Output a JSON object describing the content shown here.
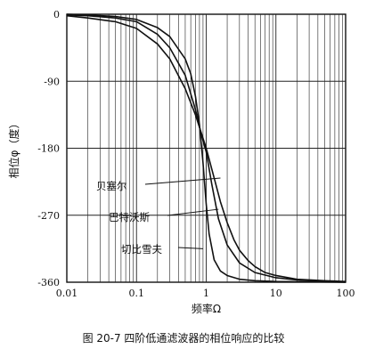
{
  "chart_data": {
    "type": "line",
    "x_scale": "log",
    "xlim": [
      0.01,
      100
    ],
    "ylim": [
      -360,
      0
    ],
    "xlabel": "频率Ω",
    "ylabel": "相位φ（度）",
    "x_ticks": [
      "0.01",
      "0.1",
      "1",
      "10",
      "100"
    ],
    "y_ticks": [
      "0",
      "-90",
      "-180",
      "-270",
      "-360"
    ],
    "grid": true,
    "series": [
      {
        "name": "贝塞尔",
        "x": [
          0.01,
          0.02,
          0.05,
          0.1,
          0.2,
          0.3,
          0.5,
          0.7,
          1,
          1.3,
          1.6,
          2,
          2.5,
          3,
          4,
          5,
          7,
          10,
          20,
          50,
          100
        ],
        "y": [
          -2,
          -5,
          -10,
          -19,
          -40,
          -60,
          -100,
          -135,
          -180,
          -220,
          -252,
          -280,
          -303,
          -317,
          -331,
          -339,
          -347,
          -351,
          -356,
          -358,
          -359
        ]
      },
      {
        "name": "巴特沃斯",
        "x": [
          0.01,
          0.02,
          0.05,
          0.1,
          0.2,
          0.3,
          0.5,
          0.7,
          0.85,
          1,
          1.2,
          1.5,
          2,
          3,
          5,
          10,
          20,
          50,
          100
        ],
        "y": [
          -1,
          -2,
          -5,
          -10,
          -27,
          -45,
          -82,
          -128,
          -162,
          -185,
          -228,
          -275,
          -310,
          -334,
          -347,
          -354,
          -357,
          -359,
          -360
        ]
      },
      {
        "name": "切比雪夫",
        "x": [
          0.01,
          0.02,
          0.05,
          0.1,
          0.2,
          0.3,
          0.5,
          0.6,
          0.7,
          0.8,
          0.9,
          1,
          1.1,
          1.3,
          1.6,
          2,
          3,
          5,
          10,
          100
        ],
        "y": [
          0,
          -1,
          -3,
          -7,
          -18,
          -30,
          -60,
          -80,
          -110,
          -148,
          -200,
          -255,
          -295,
          -330,
          -345,
          -351,
          -356,
          -358,
          -359,
          -360
        ]
      }
    ],
    "annotations": [
      {
        "text": "贝塞尔",
        "target_x": 1.6,
        "target_y": -220
      },
      {
        "text": "巴特沃斯",
        "target_x": 1.5,
        "target_y": -262
      },
      {
        "text": "切比雪夫",
        "target_x": 0.9,
        "target_y": -315
      }
    ],
    "caption": "图 20-7   四阶低通滤波器的相位响应的比较"
  }
}
